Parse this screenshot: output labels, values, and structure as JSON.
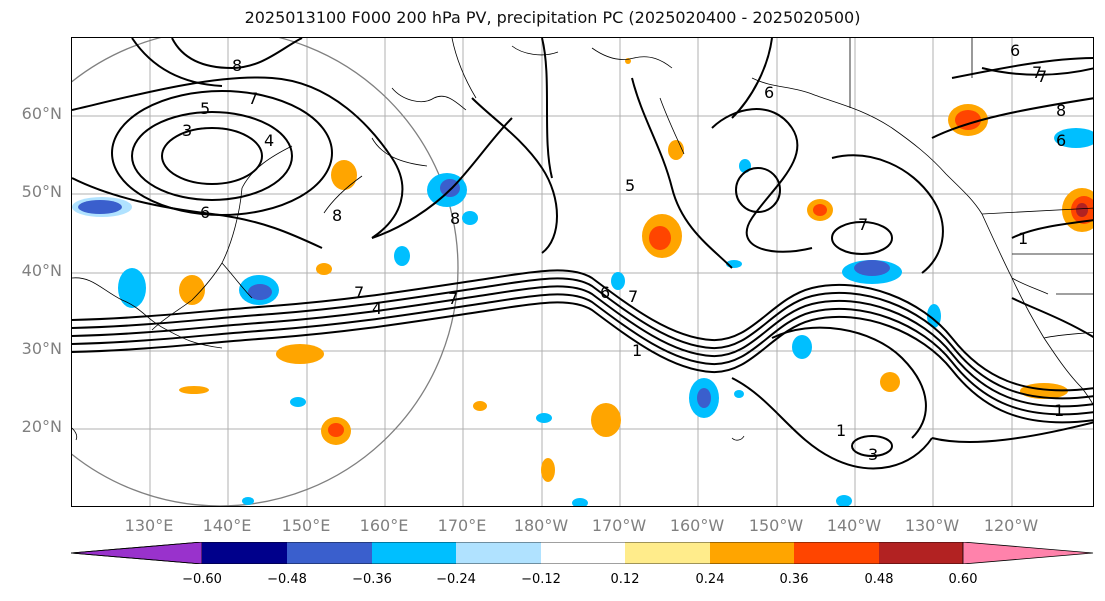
{
  "title": "2025013100 F000 200 hPa PV, precipitation PC (2025020400 - 2025020500)",
  "lat_labels": [
    "60°N",
    "50°N",
    "40°N",
    "30°N",
    "20°N"
  ],
  "lon_labels": [
    "130°E",
    "140°E",
    "150°E",
    "160°E",
    "170°E",
    "180°W",
    "170°W",
    "160°W",
    "150°W",
    "140°W",
    "130°W",
    "120°W"
  ],
  "colorbar": {
    "ticks": [
      "−0.60",
      "−0.48",
      "−0.36",
      "−0.24",
      "−0.12",
      "0.12",
      "0.24",
      "0.36",
      "0.48",
      "0.60"
    ],
    "colors": [
      "#9932cc",
      "#00008b",
      "#3a5fcd",
      "#00bfff",
      "#b0e2ff",
      "#ffffff",
      "#ffec8b",
      "#ffa500",
      "#ff4500",
      "#b22222",
      "#ff82ab"
    ]
  },
  "contour_labels": [
    "8",
    "7",
    "5",
    "3",
    "4",
    "6",
    "8",
    "7",
    "7",
    "6",
    "7",
    "5",
    "7",
    "1",
    "6",
    "8",
    "6",
    "6",
    "8",
    "1",
    "7",
    "1",
    "3",
    "1",
    "7",
    "4"
  ]
}
